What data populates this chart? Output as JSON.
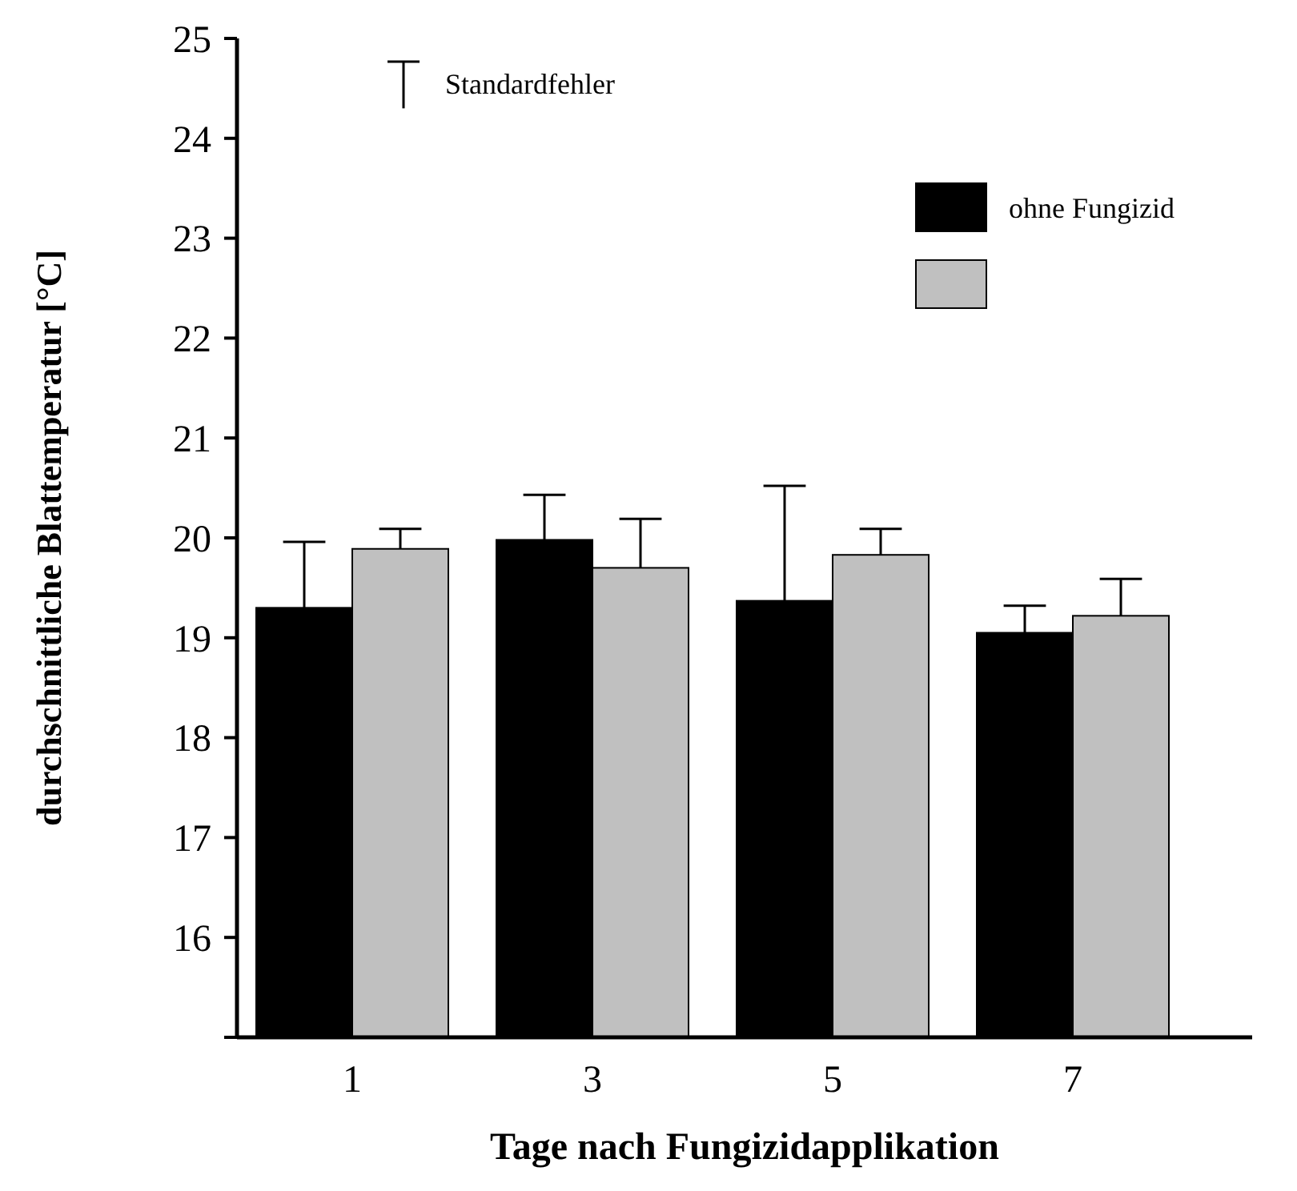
{
  "chart_data": {
    "type": "bar",
    "xlabel": "Tage nach Fungizidapplikation",
    "ylabel": "durchschnittliche Blattemperatur [°C]",
    "categories": [
      "1",
      "3",
      "5",
      "7"
    ],
    "series": [
      {
        "name": "ohne Fungizid",
        "color": "#000000",
        "values": [
          19.3,
          19.98,
          19.37,
          19.05
        ],
        "errors": [
          0.66,
          0.45,
          1.15,
          0.27
        ]
      },
      {
        "color": "#c0c0c0",
        "values": [
          19.89,
          19.7,
          19.83,
          19.22
        ],
        "errors": [
          0.2,
          0.49,
          0.26,
          0.37
        ]
      }
    ],
    "ylim": [
      15,
      25
    ],
    "yticks": [
      {
        "value": 15,
        "label": null
      },
      16,
      17,
      18,
      19,
      20,
      21,
      22,
      23,
      24,
      25
    ],
    "annotations": [
      "Standardfehler"
    ],
    "legend": "top right",
    "grid": false
  }
}
